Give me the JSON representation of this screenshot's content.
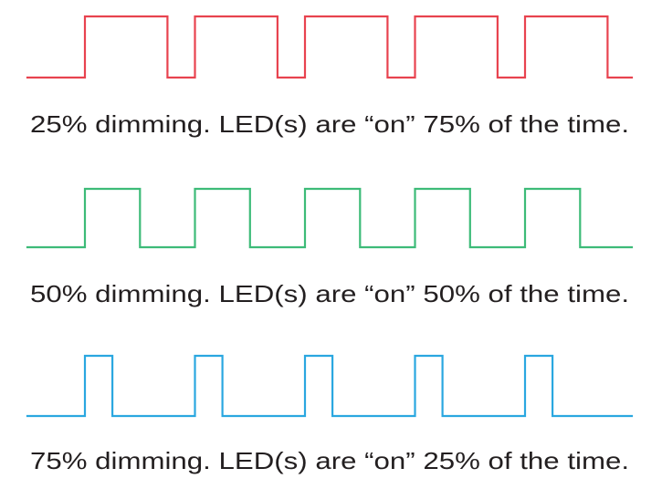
{
  "panels": [
    {
      "id": "dim-25",
      "dimming_percent": 25,
      "on_percent": 75,
      "pulse_count": 5,
      "color": "#e8434f",
      "caption": "25% dimming. LED(s) are “on” 75% of the time."
    },
    {
      "id": "dim-50",
      "dimming_percent": 50,
      "on_percent": 50,
      "pulse_count": 5,
      "color": "#3dbb78",
      "caption": "50% dimming. LED(s) are “on” 50% of the time."
    },
    {
      "id": "dim-75",
      "dimming_percent": 75,
      "on_percent": 25,
      "pulse_count": 5,
      "color": "#2aa7e0",
      "caption": "75% dimming. LED(s) are “on” 25% of the time."
    }
  ]
}
